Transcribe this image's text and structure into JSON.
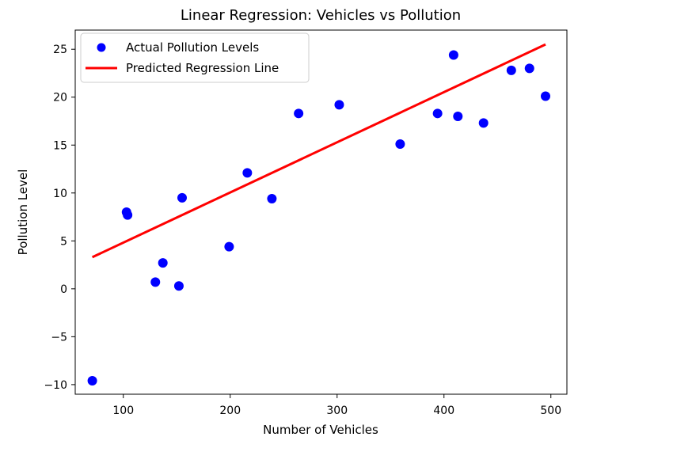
{
  "chart_data": {
    "type": "scatter",
    "title": "Linear Regression: Vehicles vs Pollution",
    "xlabel": "Number of Vehicles",
    "ylabel": "Pollution Level",
    "xlim": [
      55,
      515
    ],
    "ylim": [
      -11,
      27
    ],
    "xticks": [
      100,
      200,
      300,
      400,
      500
    ],
    "yticks": [
      -10,
      -5,
      0,
      5,
      10,
      15,
      20,
      25
    ],
    "grid": false,
    "legend_position": "upper-left",
    "series": [
      {
        "name": "Actual Pollution Levels",
        "kind": "scatter",
        "color": "#0000ff",
        "points": [
          {
            "x": 71,
            "y": -9.6
          },
          {
            "x": 103,
            "y": 8.0
          },
          {
            "x": 104,
            "y": 7.7
          },
          {
            "x": 130,
            "y": 0.7
          },
          {
            "x": 137,
            "y": 2.7
          },
          {
            "x": 152,
            "y": 0.3
          },
          {
            "x": 155,
            "y": 9.5
          },
          {
            "x": 199,
            "y": 4.4
          },
          {
            "x": 216,
            "y": 12.1
          },
          {
            "x": 239,
            "y": 9.4
          },
          {
            "x": 264,
            "y": 18.3
          },
          {
            "x": 302,
            "y": 19.2
          },
          {
            "x": 359,
            "y": 15.1
          },
          {
            "x": 394,
            "y": 18.3
          },
          {
            "x": 409,
            "y": 24.4
          },
          {
            "x": 413,
            "y": 18.0
          },
          {
            "x": 437,
            "y": 17.3
          },
          {
            "x": 463,
            "y": 22.8
          },
          {
            "x": 480,
            "y": 23.0
          },
          {
            "x": 495,
            "y": 20.1
          }
        ]
      },
      {
        "name": "Predicted Regression Line",
        "kind": "line",
        "color": "#ff0000",
        "points": [
          {
            "x": 71,
            "y": 3.3
          },
          {
            "x": 495,
            "y": 25.5
          }
        ]
      }
    ]
  }
}
